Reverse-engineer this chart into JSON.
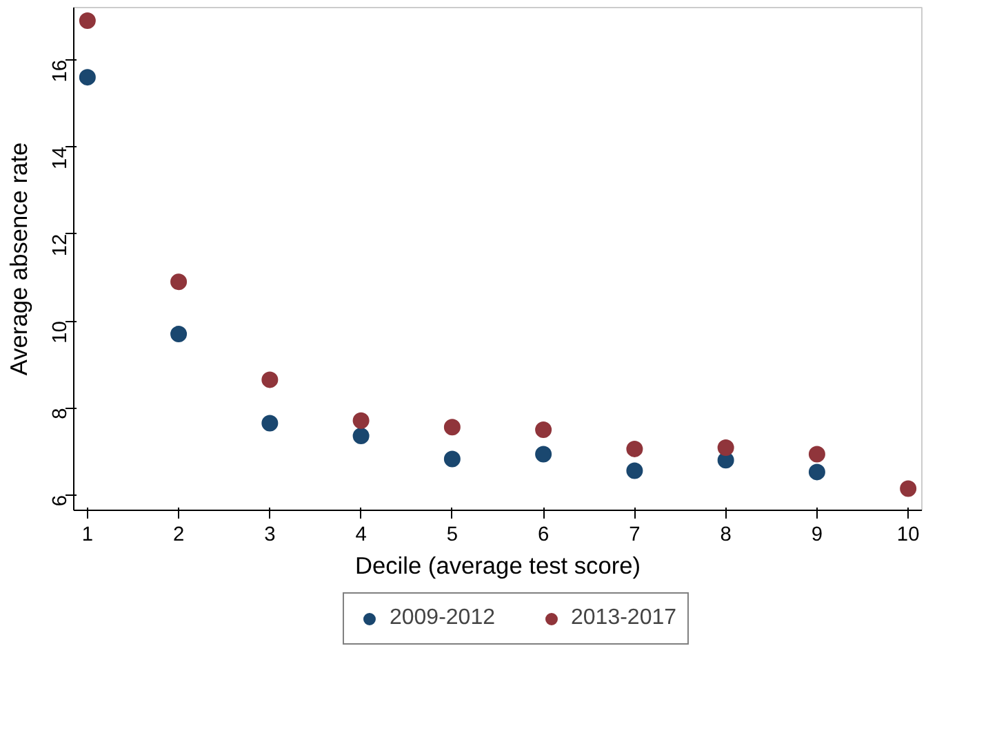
{
  "chart_data": {
    "type": "scatter",
    "xlabel": "Decile (average test score)",
    "ylabel": "Average absence rate",
    "x": [
      1,
      2,
      3,
      4,
      5,
      6,
      7,
      8,
      9,
      10
    ],
    "series": [
      {
        "name": "2009-2012",
        "color": "#1a476f",
        "values": [
          15.6,
          9.7,
          7.65,
          7.36,
          6.83,
          6.94,
          6.56,
          6.8,
          6.53,
          null
        ]
      },
      {
        "name": "2013-2017",
        "color": "#90353b",
        "values": [
          16.9,
          10.9,
          8.65,
          7.71,
          7.56,
          7.5,
          7.06,
          7.09,
          6.94,
          6.15
        ]
      }
    ],
    "xlim": [
      0.85,
      10.15
    ],
    "ylim": [
      5.65,
      17.2
    ],
    "xticks": [
      1,
      2,
      3,
      4,
      5,
      6,
      7,
      8,
      9,
      10
    ],
    "yticks": [
      6,
      8,
      10,
      12,
      14,
      16
    ],
    "marker": "circle",
    "legend": "bottom",
    "grid": false
  }
}
